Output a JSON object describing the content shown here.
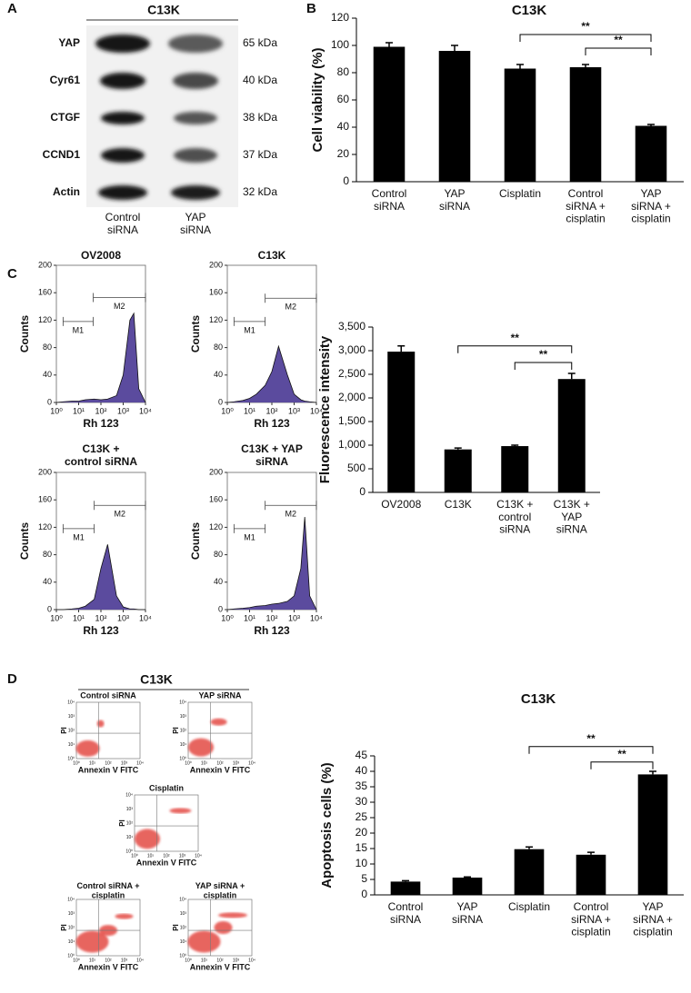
{
  "panel_labels": [
    "A",
    "B",
    "C",
    "D"
  ],
  "blot": {
    "title": "C13K",
    "rows": [
      {
        "protein": "YAP",
        "size": "65 kDa"
      },
      {
        "protein": "Cyr61",
        "size": "40 kDa"
      },
      {
        "protein": "CTGF",
        "size": "38 kDa"
      },
      {
        "protein": "CCND1",
        "size": "37 kDa"
      },
      {
        "protein": "Actin",
        "size": "32 kDa"
      }
    ],
    "lanes": [
      "Control\nsiRNA",
      "YAP\nsiRNA"
    ]
  },
  "chart_data": [
    {
      "type": "bar",
      "title": "C13K",
      "ylabel": "Cell viability (%)",
      "color": "#000000",
      "categories": [
        "Control\nsiRNA",
        "YAP\nsiRNA",
        "Cisplatin",
        "Control\nsiRNA +\ncisplatin",
        "YAP\nsiRNA +\ncisplatin"
      ],
      "values": [
        99,
        96,
        83,
        84,
        41
      ],
      "errors": [
        3,
        4,
        3,
        2,
        1
      ],
      "ylim": [
        0,
        120
      ],
      "yticks": [
        0,
        20,
        40,
        60,
        80,
        100,
        120
      ],
      "annotations": [
        {
          "from": 2,
          "to": 4,
          "level": 108,
          "label": "**"
        },
        {
          "from": 3,
          "to": 4,
          "level": 98,
          "label": "**"
        }
      ]
    },
    {
      "type": "flow",
      "title": "OV2008",
      "xlabel": "Rh 123",
      "ylabel": "Counts",
      "color": "#5b4b9e",
      "log_x": true,
      "x": [
        1,
        2,
        5,
        10,
        20,
        50,
        100,
        200,
        500,
        1000,
        2000,
        3000,
        5000,
        10000
      ],
      "values": [
        0,
        1,
        2,
        2,
        4,
        5,
        4,
        5,
        10,
        40,
        120,
        130,
        20,
        0
      ],
      "xlim": [
        1,
        10000
      ],
      "xticks": [
        {
          "value": 1,
          "label": "10⁰"
        },
        {
          "value": 10,
          "label": "10¹"
        },
        {
          "value": 100,
          "label": "10²"
        },
        {
          "value": 1000,
          "label": "10³"
        },
        {
          "value": 10000,
          "label": "10⁴"
        }
      ],
      "ylim": [
        0,
        200
      ],
      "yticks": [
        0,
        40,
        80,
        120,
        160,
        200
      ],
      "gates": [
        {
          "label": "M1",
          "range": [
            2,
            45
          ],
          "level": 118
        },
        {
          "label": "M2",
          "range": [
            45,
            10000
          ],
          "level": 153
        }
      ]
    },
    {
      "type": "flow",
      "title": "C13K",
      "xlabel": "Rh 123",
      "ylabel": "Counts",
      "color": "#5b4b9e",
      "log_x": true,
      "x": [
        1,
        2,
        5,
        10,
        20,
        50,
        100,
        200,
        500,
        1000,
        2000,
        3000,
        5000,
        10000
      ],
      "values": [
        0,
        1,
        3,
        6,
        12,
        25,
        45,
        82,
        40,
        12,
        4,
        2,
        1,
        0
      ],
      "xlim": [
        1,
        10000
      ],
      "xticks": [
        {
          "value": 1,
          "label": "10⁰"
        },
        {
          "value": 10,
          "label": "10¹"
        },
        {
          "value": 100,
          "label": "10²"
        },
        {
          "value": 1000,
          "label": "10³"
        },
        {
          "value": 10000,
          "label": "10⁴"
        }
      ],
      "ylim": [
        0,
        200
      ],
      "yticks": [
        0,
        40,
        80,
        120,
        160,
        200
      ],
      "gates": [
        {
          "label": "M1",
          "range": [
            2,
            50
          ],
          "level": 118
        },
        {
          "label": "M2",
          "range": [
            50,
            10000
          ],
          "level": 152
        }
      ]
    },
    {
      "type": "flow",
      "title": "C13K +\ncontrol siRNA",
      "xlabel": "Rh 123",
      "ylabel": "Counts",
      "color": "#5b4b9e",
      "log_x": true,
      "x": [
        1,
        2,
        5,
        10,
        20,
        50,
        100,
        200,
        500,
        1000,
        2000,
        3000,
        5000,
        10000
      ],
      "values": [
        0,
        0,
        1,
        2,
        5,
        15,
        60,
        95,
        20,
        4,
        1,
        1,
        0,
        0
      ],
      "xlim": [
        1,
        10000
      ],
      "xticks": [
        {
          "value": 1,
          "label": "10⁰"
        },
        {
          "value": 10,
          "label": "10¹"
        },
        {
          "value": 100,
          "label": "10²"
        },
        {
          "value": 1000,
          "label": "10³"
        },
        {
          "value": 10000,
          "label": "10⁴"
        }
      ],
      "ylim": [
        0,
        200
      ],
      "yticks": [
        0,
        40,
        80,
        120,
        160,
        200
      ],
      "gates": [
        {
          "label": "M1",
          "range": [
            2,
            50
          ],
          "level": 118
        },
        {
          "label": "M2",
          "range": [
            50,
            10000
          ],
          "level": 152
        }
      ]
    },
    {
      "type": "flow",
      "title": "C13K + YAP\nsiRNA",
      "xlabel": "Rh 123",
      "ylabel": "Counts",
      "color": "#5b4b9e",
      "log_x": true,
      "x": [
        1,
        2,
        5,
        10,
        20,
        50,
        100,
        200,
        500,
        1000,
        2000,
        3000,
        5000,
        10000
      ],
      "values": [
        0,
        1,
        2,
        3,
        5,
        6,
        8,
        9,
        12,
        20,
        60,
        135,
        20,
        0
      ],
      "xlim": [
        1,
        10000
      ],
      "xticks": [
        {
          "value": 1,
          "label": "10⁰"
        },
        {
          "value": 10,
          "label": "10¹"
        },
        {
          "value": 100,
          "label": "10²"
        },
        {
          "value": 1000,
          "label": "10³"
        },
        {
          "value": 10000,
          "label": "10⁴"
        }
      ],
      "ylim": [
        0,
        200
      ],
      "yticks": [
        0,
        40,
        80,
        120,
        160,
        200
      ],
      "gates": [
        {
          "label": "M1",
          "range": [
            2,
            50
          ],
          "level": 118
        },
        {
          "label": "M2",
          "range": [
            50,
            10000
          ],
          "level": 152
        }
      ]
    },
    {
      "type": "bar",
      "ylabel": "Fluorescence intensity",
      "color": "#000000",
      "categories": [
        "OV2008",
        "C13K",
        "C13K +\ncontrol\nsiRNA",
        "C13K +\nYAP\nsiRNA"
      ],
      "values": [
        2980,
        910,
        980,
        2400
      ],
      "errors": [
        120,
        30,
        20,
        120
      ],
      "ylim": [
        0,
        3500
      ],
      "yticks": [
        0,
        500,
        {
          "value": 1000,
          "label": "1,000"
        },
        {
          "value": 1500,
          "label": "1,500"
        },
        {
          "value": 2000,
          "label": "2,000"
        },
        {
          "value": 2500,
          "label": "2,500"
        },
        {
          "value": 3000,
          "label": "3,000"
        },
        {
          "value": 3500,
          "label": "3,500"
        }
      ],
      "annotations": [
        {
          "from": 1,
          "to": 3,
          "level": 3100,
          "label": "**"
        },
        {
          "from": 2,
          "to": 3,
          "level": 2750,
          "label": "**"
        }
      ]
    },
    {
      "type": "bar",
      "title": "C13K",
      "ylabel": "Apoptosis cells (%)",
      "color": "#000000",
      "categories": [
        "Control\nsiRNA",
        "YAP\nsiRNA",
        "Cisplatin",
        "Control\nsiRNA +\ncisplatin",
        "YAP\nsiRNA +\ncisplatin"
      ],
      "values": [
        4.3,
        5.6,
        14.8,
        13,
        39
      ],
      "errors": [
        0.3,
        0.2,
        0.7,
        0.8,
        1
      ],
      "ylim": [
        0,
        45
      ],
      "yticks": [
        0,
        5,
        10,
        15,
        20,
        25,
        30,
        35,
        40,
        45
      ],
      "annotations": [
        {
          "from": 2,
          "to": 4,
          "level": 48,
          "label": "**"
        },
        {
          "from": 3,
          "to": 4,
          "level": 43,
          "label": "**"
        }
      ]
    }
  ],
  "dot_plots": {
    "title": "C13K",
    "panels": [
      "Control siRNA",
      "YAP siRNA",
      "Cisplatin",
      "Control siRNA +\ncisplatin",
      "YAP siRNA +\ncisplatin"
    ],
    "x_label": "Annexin V FITC",
    "y_label": "PI",
    "ticks": [
      "10⁰",
      "10¹",
      "10²",
      "10³",
      "10⁴"
    ]
  }
}
